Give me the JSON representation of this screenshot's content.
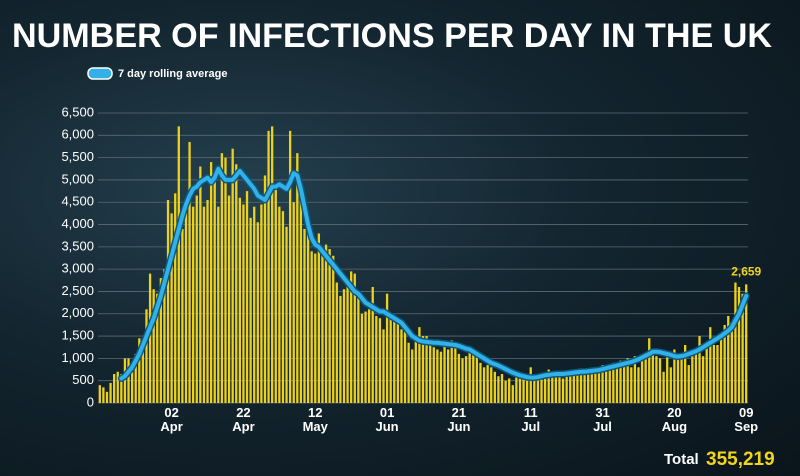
{
  "chart_data": {
    "type": "bar",
    "title": "NUMBER OF INFECTIONS PER DAY IN THE UK",
    "total_label": "Total",
    "total_value": "355,219",
    "categories": [
      null,
      null,
      null,
      null,
      null,
      null,
      null,
      null,
      null,
      null,
      null,
      null,
      null,
      null,
      null,
      null,
      null,
      null,
      null,
      null,
      "02 Apr",
      null,
      null,
      null,
      null,
      null,
      null,
      null,
      null,
      null,
      null,
      null,
      null,
      null,
      null,
      null,
      null,
      null,
      null,
      null,
      "22 Apr",
      null,
      null,
      null,
      null,
      null,
      null,
      null,
      null,
      null,
      null,
      null,
      null,
      null,
      null,
      null,
      null,
      null,
      null,
      null,
      "12 May",
      null,
      null,
      null,
      null,
      null,
      null,
      null,
      null,
      null,
      null,
      null,
      null,
      null,
      null,
      null,
      null,
      null,
      null,
      null,
      "01 Jun",
      null,
      null,
      null,
      null,
      null,
      null,
      null,
      null,
      null,
      null,
      null,
      null,
      null,
      null,
      null,
      null,
      null,
      null,
      null,
      "21 Jun",
      null,
      null,
      null,
      null,
      null,
      null,
      null,
      null,
      null,
      null,
      null,
      null,
      null,
      null,
      null,
      null,
      null,
      null,
      null,
      "11 Jul",
      null,
      null,
      null,
      null,
      null,
      null,
      null,
      null,
      null,
      null,
      null,
      null,
      null,
      null,
      null,
      null,
      null,
      null,
      null,
      "31 Jul",
      null,
      null,
      null,
      null,
      null,
      null,
      null,
      null,
      null,
      null,
      null,
      null,
      null,
      null,
      null,
      null,
      null,
      null,
      null,
      "20 Aug",
      null,
      null,
      null,
      null,
      null,
      null,
      null,
      null,
      null,
      null,
      null,
      null,
      null,
      null,
      null,
      null,
      null,
      null,
      null,
      "09 Sep"
    ],
    "series": [
      {
        "type": "bar",
        "color": "#ecd21c",
        "values": [
          400,
          350,
          250,
          450,
          650,
          700,
          650,
          1000,
          1000,
          700,
          1100,
          1450,
          1450,
          2100,
          2900,
          2550,
          2450,
          2800,
          3000,
          4550,
          4250,
          4700,
          6200,
          3900,
          4400,
          5850,
          4400,
          4650,
          5300,
          4400,
          4550,
          5400,
          5150,
          4400,
          5600,
          5500,
          4650,
          5700,
          5350,
          4600,
          4450,
          4750,
          4150,
          4400,
          4050,
          4450,
          5100,
          6100,
          6200,
          4800,
          4400,
          4300,
          3950,
          6100,
          4500,
          5600,
          4600,
          3900,
          3900,
          3400,
          3350,
          3800,
          3400,
          3550,
          3450,
          3300,
          2700,
          2400,
          2550,
          2600,
          2950,
          2900,
          2400,
          2000,
          2050,
          2100,
          2600,
          1950,
          1900,
          1650,
          2450,
          1950,
          1850,
          1800,
          1650,
          1600,
          1350,
          1200,
          1450,
          1700,
          1500,
          1500,
          1400,
          1250,
          1200,
          1150,
          1350,
          1200,
          1400,
          1300,
          1100,
          1000,
          1050,
          1250,
          1100,
          1050,
          900,
          800,
          850,
          800,
          700,
          600,
          650,
          500,
          550,
          400,
          600,
          650,
          550,
          500,
          800,
          600,
          550,
          650,
          550,
          750,
          650,
          700,
          600,
          550,
          700,
          650,
          750,
          700,
          650,
          700,
          750,
          700,
          800,
          750,
          850,
          750,
          800,
          900,
          850,
          950,
          850,
          1000,
          800,
          1050,
          800,
          1050,
          1000,
          1450,
          1100,
          1050,
          1000,
          700,
          1100,
          800,
          1200,
          1050,
          1000,
          1300,
          850,
          1050,
          1200,
          1500,
          1050,
          1250,
          1700,
          1300,
          1300,
          1450,
          1750,
          1950,
          1650,
          2700,
          2600,
          2450,
          2659
        ],
        "value_labels": [
          null,
          null,
          null,
          null,
          null,
          null,
          null,
          null,
          null,
          null,
          null,
          null,
          null,
          null,
          null,
          null,
          null,
          null,
          null,
          null,
          null,
          null,
          null,
          null,
          null,
          null,
          null,
          null,
          null,
          null,
          null,
          null,
          null,
          null,
          null,
          null,
          null,
          null,
          null,
          null,
          null,
          null,
          null,
          null,
          null,
          null,
          null,
          null,
          null,
          null,
          null,
          null,
          null,
          null,
          null,
          null,
          null,
          null,
          null,
          null,
          null,
          null,
          null,
          null,
          null,
          null,
          null,
          null,
          null,
          null,
          null,
          null,
          null,
          null,
          null,
          null,
          null,
          null,
          null,
          null,
          null,
          null,
          null,
          null,
          null,
          null,
          null,
          null,
          null,
          null,
          null,
          null,
          null,
          null,
          null,
          null,
          null,
          null,
          null,
          null,
          null,
          null,
          null,
          null,
          null,
          null,
          null,
          null,
          null,
          null,
          null,
          null,
          null,
          null,
          null,
          null,
          null,
          null,
          null,
          null,
          null,
          null,
          null,
          null,
          null,
          null,
          null,
          null,
          null,
          null,
          null,
          null,
          null,
          null,
          null,
          null,
          null,
          null,
          null,
          null,
          null,
          null,
          null,
          null,
          null,
          null,
          null,
          null,
          null,
          null,
          null,
          null,
          null,
          null,
          null,
          null,
          null,
          null,
          null,
          null,
          null,
          null,
          null,
          null,
          null,
          null,
          null,
          null,
          null,
          null,
          null,
          null,
          null,
          null,
          null,
          null,
          null,
          null,
          null,
          null,
          "2,659"
        ]
      },
      {
        "type": "line",
        "name": "7 day rolling average",
        "color": "#33b0e8",
        "values": [
          null,
          null,
          null,
          null,
          null,
          null,
          550,
          600,
          700,
          800,
          950,
          1100,
          1300,
          1500,
          1700,
          1900,
          2150,
          2400,
          2700,
          3000,
          3300,
          3600,
          3900,
          4200,
          4450,
          4650,
          4800,
          4850,
          4950,
          5000,
          5050,
          4950,
          5050,
          5250,
          5100,
          5000,
          5000,
          5000,
          5100,
          5200,
          5100,
          5000,
          4900,
          4800,
          4650,
          4600,
          4550,
          4700,
          4850,
          4850,
          4900,
          4850,
          4800,
          4950,
          5150,
          5100,
          4800,
          4400,
          4000,
          3700,
          3550,
          3500,
          3400,
          3300,
          3200,
          3100,
          3000,
          2900,
          2800,
          2700,
          2600,
          2500,
          2450,
          2350,
          2250,
          2200,
          2150,
          2100,
          2050,
          2050,
          2000,
          1950,
          1900,
          1850,
          1800,
          1700,
          1600,
          1500,
          1450,
          1400,
          1380,
          1370,
          1360,
          1350,
          1350,
          1340,
          1330,
          1320,
          1310,
          1300,
          1280,
          1250,
          1220,
          1200,
          1150,
          1100,
          1050,
          1000,
          950,
          900,
          870,
          840,
          800,
          760,
          720,
          680,
          650,
          620,
          600,
          580,
          570,
          570,
          580,
          600,
          620,
          630,
          640,
          650,
          650,
          650,
          660,
          670,
          680,
          690,
          700,
          700,
          710,
          720,
          730,
          740,
          760,
          780,
          800,
          820,
          840,
          860,
          880,
          900,
          920,
          950,
          980,
          1020,
          1060,
          1100,
          1150,
          1150,
          1140,
          1120,
          1100,
          1080,
          1050,
          1040,
          1050,
          1070,
          1100,
          1130,
          1160,
          1200,
          1250,
          1300,
          1350,
          1400,
          1450,
          1500,
          1560,
          1620,
          1700,
          1850,
          2000,
          2200,
          2400
        ]
      }
    ],
    "ylim": [
      0,
      6500
    ],
    "yticks": [
      0,
      500,
      {
        "value": 1000,
        "label": "1,000"
      },
      {
        "value": 1500,
        "label": "1,500"
      },
      {
        "value": 2000,
        "label": "2,000"
      },
      {
        "value": 2500,
        "label": "2,500"
      },
      {
        "value": 3000,
        "label": "3,000"
      },
      {
        "value": 3500,
        "label": "3,500"
      },
      {
        "value": 4000,
        "label": "4,000"
      },
      {
        "value": 4500,
        "label": "4,500"
      },
      {
        "value": 5000,
        "label": "5,000"
      },
      {
        "value": 5500,
        "label": "5,500"
      },
      {
        "value": 6000,
        "label": "6,000"
      },
      {
        "value": 6500,
        "label": "6,500"
      }
    ],
    "grid": true
  }
}
